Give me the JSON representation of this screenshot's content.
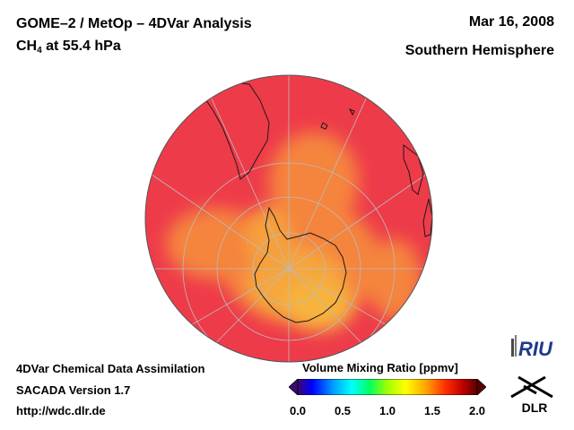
{
  "header": {
    "title_line1": "GOME–2 / MetOp – 4DVar Analysis",
    "species": "CH",
    "species_subscript": "4",
    "level": " at 55.4 hPa",
    "date": "Mar 16, 2008",
    "region": "Southern Hemisphere"
  },
  "footer": {
    "line1": "4DVar Chemical Data Assimilation",
    "line2": "SACADA Version 1.7",
    "line3": "http://wdc.dlr.de"
  },
  "colorbar": {
    "title": "Volume Mixing Ratio [ppmv]",
    "ticks": [
      "0.0",
      "0.5",
      "1.0",
      "1.5",
      "2.0"
    ],
    "range": [
      0.0,
      2.0
    ],
    "colors": [
      "#3a0a6e",
      "#0000ff",
      "#00a0ff",
      "#00ffff",
      "#00ff60",
      "#a0ff00",
      "#ffff00",
      "#ffa000",
      "#ff3000",
      "#c00000",
      "#5a0000"
    ]
  },
  "logos": {
    "riu": "RIU",
    "dlr": "DLR"
  },
  "colors": {
    "field_high": "#ee3b4a",
    "field_mid": "#f5843e",
    "field_low": "#f6b33e",
    "coast": "#1a1a1a",
    "grid": "#bbbbbb"
  }
}
